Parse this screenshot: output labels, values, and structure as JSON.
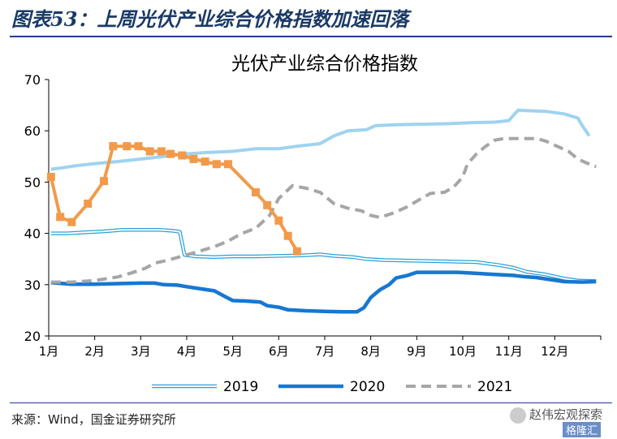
{
  "figure_title": "图表53：上周光伏产业综合价格指数加速回落",
  "source": "来源：Wind，国金证券研究所",
  "watermark": "赵伟宏观探索",
  "watermark2": "格隆汇",
  "colors": {
    "s2019": "#9fd3ef",
    "s2020": "#1777d2",
    "s2021": "#a6a6a6",
    "s2021_partial": "#f29a4a",
    "title_rule": "#1e3d8f"
  },
  "chart_data": {
    "type": "line",
    "title": "光伏产业综合价格指数",
    "ylim": [
      20,
      70
    ],
    "yticks": [
      20,
      30,
      40,
      50,
      60,
      70
    ],
    "xlim": [
      1,
      13
    ],
    "xticks": [
      {
        "x": 1,
        "label": "1月"
      },
      {
        "x": 2,
        "label": "2月"
      },
      {
        "x": 3,
        "label": "3月"
      },
      {
        "x": 4,
        "label": "4月"
      },
      {
        "x": 5,
        "label": "5月"
      },
      {
        "x": 6,
        "label": "6月"
      },
      {
        "x": 7,
        "label": "7月"
      },
      {
        "x": 8,
        "label": "8月"
      },
      {
        "x": 9,
        "label": "9月"
      },
      {
        "x": 10,
        "label": "10月"
      },
      {
        "x": 11,
        "label": "11月"
      },
      {
        "x": 12,
        "label": "12月"
      }
    ],
    "legend_position": "bottom",
    "series": [
      {
        "name": "2019",
        "style": "double",
        "points": [
          [
            1.05,
            40.0
          ],
          [
            1.4,
            40.0
          ],
          [
            1.8,
            40.2
          ],
          [
            2.2,
            40.4
          ],
          [
            2.6,
            40.7
          ],
          [
            3.0,
            40.7
          ],
          [
            3.4,
            40.7
          ],
          [
            3.7,
            40.5
          ],
          [
            3.85,
            40.3
          ],
          [
            3.95,
            35.8
          ],
          [
            4.2,
            35.5
          ],
          [
            4.6,
            35.4
          ],
          [
            5.0,
            35.5
          ],
          [
            5.5,
            35.5
          ],
          [
            6.0,
            35.6
          ],
          [
            6.5,
            35.7
          ],
          [
            6.9,
            35.9
          ],
          [
            7.2,
            35.6
          ],
          [
            7.6,
            35.4
          ],
          [
            7.9,
            35.0
          ],
          [
            8.3,
            34.8
          ],
          [
            8.8,
            34.7
          ],
          [
            9.3,
            34.6
          ],
          [
            9.8,
            34.5
          ],
          [
            10.3,
            34.4
          ],
          [
            10.8,
            33.8
          ],
          [
            11.1,
            33.3
          ],
          [
            11.4,
            32.5
          ],
          [
            11.8,
            32.0
          ],
          [
            12.2,
            31.2
          ],
          [
            12.5,
            30.8
          ],
          [
            12.9,
            30.7
          ]
        ]
      },
      {
        "name": "2020",
        "style": "thick",
        "points": [
          [
            1.05,
            30.4
          ],
          [
            1.5,
            30.1
          ],
          [
            2.0,
            30.1
          ],
          [
            2.5,
            30.2
          ],
          [
            3.0,
            30.3
          ],
          [
            3.3,
            30.3
          ],
          [
            3.5,
            30.0
          ],
          [
            3.8,
            29.9
          ],
          [
            4.0,
            29.6
          ],
          [
            4.3,
            29.2
          ],
          [
            4.6,
            28.8
          ],
          [
            4.85,
            27.6
          ],
          [
            5.0,
            26.9
          ],
          [
            5.3,
            26.8
          ],
          [
            5.6,
            26.6
          ],
          [
            5.75,
            25.9
          ],
          [
            6.0,
            25.6
          ],
          [
            6.2,
            25.1
          ],
          [
            6.6,
            24.9
          ],
          [
            7.0,
            24.8
          ],
          [
            7.4,
            24.7
          ],
          [
            7.7,
            24.7
          ],
          [
            7.85,
            25.5
          ],
          [
            8.0,
            27.5
          ],
          [
            8.2,
            29.0
          ],
          [
            8.4,
            30.0
          ],
          [
            8.55,
            31.3
          ],
          [
            8.8,
            31.8
          ],
          [
            9.0,
            32.4
          ],
          [
            9.5,
            32.4
          ],
          [
            9.9,
            32.4
          ],
          [
            10.3,
            32.2
          ],
          [
            10.7,
            32.0
          ],
          [
            11.1,
            31.8
          ],
          [
            11.3,
            31.6
          ],
          [
            11.6,
            31.4
          ],
          [
            11.9,
            31.0
          ],
          [
            12.2,
            30.6
          ],
          [
            12.6,
            30.5
          ],
          [
            12.9,
            30.6
          ]
        ]
      },
      {
        "name": "2021",
        "style": "dashed",
        "points": [
          [
            1.05,
            30.5
          ],
          [
            1.5,
            30.5
          ],
          [
            2.0,
            30.8
          ],
          [
            2.5,
            31.5
          ],
          [
            2.8,
            32.3
          ],
          [
            3.1,
            33.2
          ],
          [
            3.3,
            34.2
          ],
          [
            3.6,
            34.8
          ],
          [
            4.0,
            35.8
          ],
          [
            4.3,
            36.6
          ],
          [
            4.6,
            37.4
          ],
          [
            4.9,
            38.5
          ],
          [
            5.2,
            40.0
          ],
          [
            5.5,
            41.0
          ],
          [
            5.8,
            43.5
          ],
          [
            6.0,
            46.8
          ],
          [
            6.3,
            49.3
          ],
          [
            6.6,
            48.8
          ],
          [
            6.9,
            48.0
          ],
          [
            7.2,
            45.8
          ],
          [
            7.5,
            44.9
          ],
          [
            7.8,
            44.4
          ],
          [
            8.0,
            43.5
          ],
          [
            8.2,
            43.1
          ],
          [
            8.5,
            44.0
          ],
          [
            8.8,
            45.2
          ],
          [
            9.1,
            46.8
          ],
          [
            9.3,
            47.8
          ],
          [
            9.6,
            48.0
          ],
          [
            9.8,
            49.0
          ],
          [
            10.0,
            51.0
          ],
          [
            10.1,
            53.5
          ],
          [
            10.3,
            55.5
          ],
          [
            10.5,
            57.0
          ],
          [
            10.7,
            58.2
          ],
          [
            10.9,
            58.5
          ],
          [
            11.2,
            58.5
          ],
          [
            11.6,
            58.5
          ],
          [
            11.8,
            58.0
          ],
          [
            12.0,
            57.2
          ],
          [
            12.3,
            56.0
          ],
          [
            12.5,
            54.5
          ],
          [
            12.8,
            53.3
          ],
          [
            12.9,
            53.0
          ]
        ]
      },
      {
        "name": "",
        "style": "light",
        "points": [
          [
            1.05,
            52.5
          ],
          [
            1.3,
            52.8
          ],
          [
            1.6,
            53.2
          ],
          [
            2.0,
            53.6
          ],
          [
            2.5,
            54.0
          ],
          [
            3.0,
            54.5
          ],
          [
            3.5,
            55.0
          ],
          [
            4.0,
            55.5
          ],
          [
            4.5,
            55.8
          ],
          [
            5.0,
            56.0
          ],
          [
            5.5,
            56.5
          ],
          [
            6.0,
            56.5
          ],
          [
            6.4,
            57.0
          ],
          [
            6.9,
            57.5
          ],
          [
            7.2,
            59.0
          ],
          [
            7.5,
            60.0
          ],
          [
            7.9,
            60.2
          ],
          [
            8.1,
            61.0
          ],
          [
            8.6,
            61.2
          ],
          [
            9.2,
            61.3
          ],
          [
            9.7,
            61.4
          ],
          [
            10.2,
            61.6
          ],
          [
            10.7,
            61.7
          ],
          [
            11.0,
            62.0
          ],
          [
            11.2,
            64.0
          ],
          [
            11.8,
            63.8
          ],
          [
            12.2,
            63.3
          ],
          [
            12.5,
            62.5
          ],
          [
            12.6,
            61.0
          ],
          [
            12.75,
            59.0
          ]
        ]
      },
      {
        "name": "",
        "style": "markers",
        "points": [
          [
            1.05,
            51.0
          ],
          [
            1.25,
            43.2
          ],
          [
            1.5,
            42.2
          ],
          [
            1.85,
            45.8
          ],
          [
            2.2,
            50.2
          ],
          [
            2.4,
            57.0
          ],
          [
            2.7,
            57.0
          ],
          [
            2.95,
            57.0
          ],
          [
            3.2,
            56.0
          ],
          [
            3.45,
            56.0
          ],
          [
            3.65,
            55.5
          ],
          [
            3.9,
            55.2
          ],
          [
            4.15,
            54.5
          ],
          [
            4.4,
            54.0
          ],
          [
            4.65,
            53.5
          ],
          [
            4.9,
            53.5
          ],
          [
            5.5,
            48.0
          ],
          [
            5.75,
            45.5
          ],
          [
            6.0,
            42.5
          ],
          [
            6.2,
            39.5
          ],
          [
            6.4,
            36.5
          ]
        ]
      }
    ]
  }
}
